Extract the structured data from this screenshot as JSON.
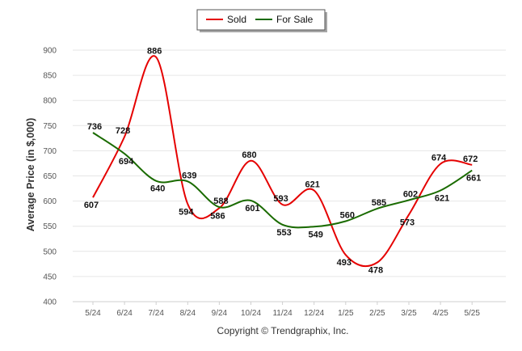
{
  "chart_data": {
    "type": "line",
    "ylabel": "Average Price (in $,000)",
    "ylim": [
      400,
      900
    ],
    "yticks": [
      400,
      450,
      500,
      550,
      600,
      650,
      700,
      750,
      800,
      850,
      900
    ],
    "categories": [
      "5/24",
      "6/24",
      "7/24",
      "8/24",
      "9/24",
      "10/24",
      "11/24",
      "12/24",
      "1/25",
      "2/25",
      "3/25",
      "4/25",
      "5/25"
    ],
    "legend_position": "top-center",
    "grid": "horizontal",
    "series": [
      {
        "name": "Sold",
        "color": "#e50000",
        "values": [
          607,
          728,
          886,
          594,
          586,
          680,
          593,
          621,
          493,
          478,
          573,
          674,
          672
        ]
      },
      {
        "name": "For Sale",
        "color": "#1a6b00",
        "values": [
          736,
          694,
          640,
          639,
          588,
          601,
          553,
          549,
          560,
          585,
          602,
          621,
          661
        ]
      }
    ]
  },
  "footer": {
    "copyright": "Copyright © Trendgraphix, Inc."
  }
}
